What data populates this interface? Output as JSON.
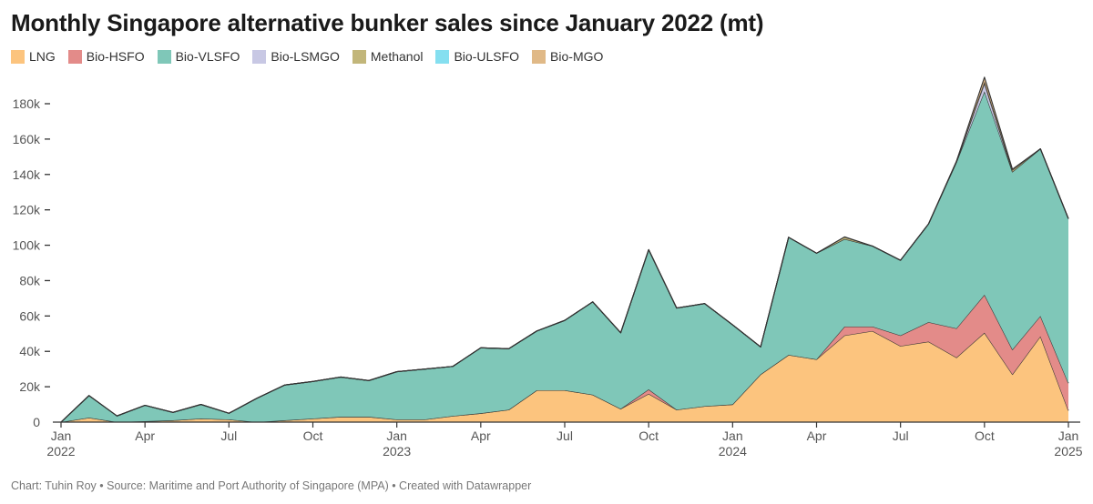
{
  "title": "Monthly Singapore alternative bunker sales since January 2022 (mt)",
  "footer": "Chart: Tuhin Roy • Source: Maritime and Port Authority of Singapore (MPA) • Created with Datawrapper",
  "chart_data": {
    "type": "area",
    "stacked": true,
    "title": "Monthly Singapore alternative bunker sales since January 2022 (mt)",
    "xlabel": "",
    "ylabel": "",
    "ylim": [
      0,
      195000
    ],
    "yticks": [
      0,
      20000,
      40000,
      60000,
      80000,
      100000,
      120000,
      140000,
      160000,
      180000
    ],
    "ytick_labels": [
      "0",
      "20k",
      "40k",
      "60k",
      "80k",
      "100k",
      "120k",
      "140k",
      "160k",
      "180k"
    ],
    "xticks": [
      {
        "index": 0,
        "label": "Jan",
        "year": "2022"
      },
      {
        "index": 3,
        "label": "Apr",
        "year": ""
      },
      {
        "index": 6,
        "label": "Jul",
        "year": ""
      },
      {
        "index": 9,
        "label": "Oct",
        "year": ""
      },
      {
        "index": 12,
        "label": "Jan",
        "year": "2023"
      },
      {
        "index": 15,
        "label": "Apr",
        "year": ""
      },
      {
        "index": 18,
        "label": "Jul",
        "year": ""
      },
      {
        "index": 21,
        "label": "Oct",
        "year": ""
      },
      {
        "index": 24,
        "label": "Jan",
        "year": "2024"
      },
      {
        "index": 27,
        "label": "Apr",
        "year": ""
      },
      {
        "index": 30,
        "label": "Jul",
        "year": ""
      },
      {
        "index": 33,
        "label": "Oct",
        "year": ""
      },
      {
        "index": 36,
        "label": "Jan",
        "year": "2025"
      }
    ],
    "grid": false,
    "legend_position": "top-left",
    "x": [
      "2022-01",
      "2022-02",
      "2022-03",
      "2022-04",
      "2022-05",
      "2022-06",
      "2022-07",
      "2022-08",
      "2022-09",
      "2022-10",
      "2022-11",
      "2022-12",
      "2023-01",
      "2023-02",
      "2023-03",
      "2023-04",
      "2023-05",
      "2023-06",
      "2023-07",
      "2023-08",
      "2023-09",
      "2023-10",
      "2023-11",
      "2023-12",
      "2024-01",
      "2024-02",
      "2024-03",
      "2024-04",
      "2024-05",
      "2024-06",
      "2024-07",
      "2024-08",
      "2024-09",
      "2024-10",
      "2024-11",
      "2024-12",
      "2025-01"
    ],
    "series": [
      {
        "name": "LNG",
        "color": "#fcc47e",
        "values": [
          0,
          2500,
          0,
          500,
          1000,
          2000,
          1500,
          0,
          1000,
          2000,
          3000,
          3000,
          1500,
          1500,
          3500,
          5000,
          7000,
          18000,
          18000,
          15500,
          7500,
          16000,
          7000,
          9000,
          10000,
          27000,
          38000,
          35500,
          49000,
          51500,
          43000,
          45500,
          36500,
          50500,
          27000,
          48500,
          6500
        ]
      },
      {
        "name": "Bio-HSFO",
        "color": "#e38b89",
        "values": [
          0,
          0,
          0,
          0,
          0,
          0,
          0,
          0,
          0,
          0,
          0,
          0,
          0,
          0,
          0,
          0,
          0,
          0,
          0,
          0,
          0,
          2500,
          0,
          0,
          0,
          0,
          0,
          0,
          5000,
          2500,
          6000,
          11000,
          16500,
          21500,
          14000,
          11500,
          15500
        ]
      },
      {
        "name": "Bio-VLSFO",
        "color": "#7fc7b8",
        "values": [
          0,
          12500,
          3500,
          9000,
          4500,
          8000,
          3500,
          13500,
          20000,
          21000,
          22500,
          20500,
          27000,
          28500,
          28000,
          37000,
          34500,
          33500,
          39500,
          52500,
          43000,
          79000,
          57500,
          58000,
          45000,
          15500,
          66500,
          60000,
          49500,
          45500,
          42500,
          55500,
          94000,
          115000,
          100500,
          94500,
          93000
        ]
      },
      {
        "name": "Bio-LSMGO",
        "color": "#c8c8e4",
        "values": [
          0,
          0,
          0,
          0,
          0,
          0,
          0,
          0,
          0,
          0,
          0,
          0,
          0,
          0,
          0,
          0,
          0,
          0,
          0,
          0,
          0,
          0,
          0,
          0,
          0,
          0,
          0,
          0,
          0,
          0,
          0,
          0,
          0,
          4500,
          0,
          0,
          0
        ]
      },
      {
        "name": "Methanol",
        "color": "#c2b67a",
        "values": [
          0,
          0,
          0,
          0,
          0,
          0,
          0,
          0,
          0,
          0,
          0,
          0,
          0,
          0,
          0,
          0,
          0,
          0,
          0,
          0,
          0,
          0,
          0,
          0,
          0,
          0,
          0,
          0,
          1200,
          0,
          0,
          0,
          500,
          1000,
          1000,
          0,
          0
        ]
      },
      {
        "name": "Bio-ULSFO",
        "color": "#85dff0",
        "values": [
          0,
          0,
          0,
          0,
          0,
          0,
          0,
          0,
          0,
          0,
          0,
          0,
          0,
          0,
          0,
          0,
          0,
          0,
          0,
          0,
          0,
          0,
          0,
          0,
          0,
          0,
          0,
          0,
          0,
          0,
          0,
          0,
          0,
          0,
          0,
          0,
          0
        ]
      },
      {
        "name": "Bio-MGO",
        "color": "#e0b987",
        "values": [
          0,
          0,
          0,
          0,
          0,
          0,
          0,
          0,
          0,
          0,
          0,
          0,
          0,
          0,
          0,
          0,
          0,
          0,
          0,
          0,
          0,
          0,
          0,
          0,
          0,
          0,
          0,
          0,
          0,
          0,
          0,
          0,
          0,
          2500,
          500,
          0,
          0
        ]
      }
    ]
  }
}
